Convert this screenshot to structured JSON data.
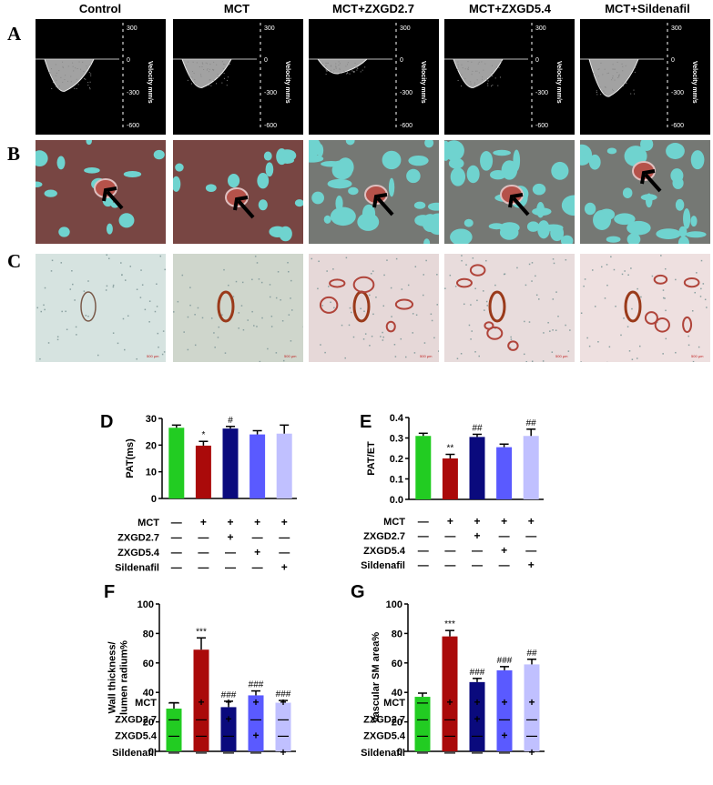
{
  "groups": [
    "Control",
    "MCT",
    "MCT+ZXGD2.7",
    "MCT+ZXGD5.4",
    "MCT+Sildenafil"
  ],
  "row_labels": [
    "A",
    "B",
    "C"
  ],
  "doppler": {
    "ticks": [
      "300",
      "0",
      "-300",
      "-600"
    ],
    "axis_label": "Velocity mm/s"
  },
  "scale_bars": [
    "500 μm",
    "500 μm",
    "500 μm",
    "500 μm",
    "500 μm"
  ],
  "treatment_labels": [
    "MCT",
    "ZXGD2.7",
    "ZXGD5.4",
    "Sildenafil"
  ],
  "treatment_matrix": [
    [
      "—",
      "+",
      "+",
      "+",
      "+"
    ],
    [
      "—",
      "—",
      "+",
      "—",
      "—"
    ],
    [
      "—",
      "—",
      "—",
      "+",
      "—"
    ],
    [
      "—",
      "—",
      "—",
      "—",
      "+"
    ]
  ],
  "colors": [
    "#22cc22",
    "#aa0a0a",
    "#0a0a7d",
    "#5a5aff",
    "#c0c0ff"
  ],
  "chart_data": [
    {
      "panel": "D",
      "type": "bar",
      "categories": [
        "Control",
        "MCT",
        "MCT+ZXGD2.7",
        "MCT+ZXGD5.4",
        "MCT+Sildenafil"
      ],
      "values": [
        26.5,
        19.8,
        26.2,
        24.0,
        24.3
      ],
      "errors": [
        1.0,
        1.6,
        0.8,
        1.4,
        3.2
      ],
      "annotations": [
        "",
        "*",
        "#",
        "",
        ""
      ],
      "ylabel": "PAT(ms)",
      "ylim": [
        0,
        30
      ],
      "yticks": [
        0,
        10,
        20,
        30
      ]
    },
    {
      "panel": "E",
      "type": "bar",
      "categories": [
        "Control",
        "MCT",
        "MCT+ZXGD2.7",
        "MCT+ZXGD5.4",
        "MCT+Sildenafil"
      ],
      "values": [
        0.31,
        0.2,
        0.305,
        0.255,
        0.31
      ],
      "errors": [
        0.013,
        0.02,
        0.013,
        0.015,
        0.033
      ],
      "annotations": [
        "",
        "**",
        "##",
        "",
        "##"
      ],
      "ylabel": "PAT/ET",
      "ylim": [
        0,
        0.4
      ],
      "yticks": [
        "0.0",
        "0.1",
        "0.2",
        "0.3",
        "0.4"
      ]
    },
    {
      "panel": "F",
      "type": "bar",
      "categories": [
        "Control",
        "MCT",
        "MCT+ZXGD2.7",
        "MCT+ZXGD5.4",
        "MCT+Sildenafil"
      ],
      "values": [
        29,
        69,
        30,
        38,
        33
      ],
      "errors": [
        4,
        8,
        4,
        3,
        1.5
      ],
      "annotations": [
        "",
        "***",
        "###",
        "###",
        "###"
      ],
      "ylabel": "Wall thickness/ lumen radium%",
      "ylim": [
        0,
        100
      ],
      "yticks": [
        0,
        20,
        40,
        60,
        80,
        100
      ]
    },
    {
      "panel": "G",
      "type": "bar",
      "categories": [
        "Control",
        "MCT",
        "MCT+ZXGD2.7",
        "MCT+ZXGD5.4",
        "MCT+Sildenafil"
      ],
      "values": [
        37,
        78,
        47,
        55,
        59
      ],
      "errors": [
        2.5,
        4,
        2.5,
        2.5,
        3.5
      ],
      "annotations": [
        "",
        "***",
        "###",
        "###",
        "##"
      ],
      "ylabel": "Vascular SM area%",
      "ylim": [
        0,
        100
      ],
      "yticks": [
        0,
        20,
        40,
        60,
        80,
        100
      ]
    }
  ]
}
